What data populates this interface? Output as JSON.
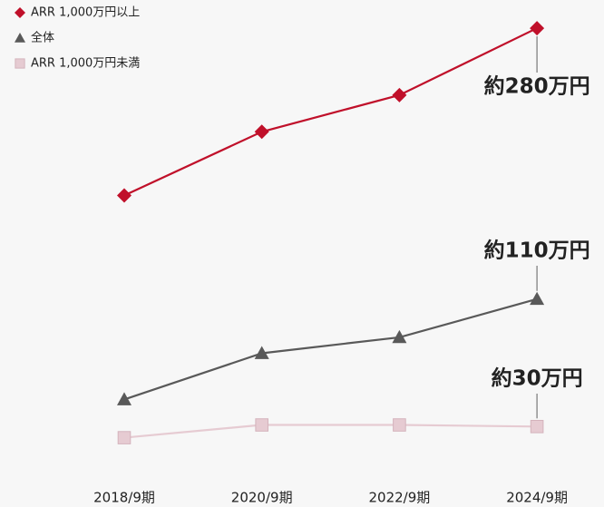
{
  "chart_data": {
    "type": "line",
    "categories": [
      "2018/9期",
      "2020/9期",
      "2022/9期",
      "2024/9期"
    ],
    "series": [
      {
        "name": "ARR 1,000万円以上",
        "color": "#c0102a",
        "marker": "diamond",
        "values": [
          175,
          215,
          238,
          280
        ],
        "value_labels": [
          null,
          null,
          null,
          "約280万円"
        ]
      },
      {
        "name": "全体",
        "color": "#595959",
        "marker": "triangle",
        "values": [
          47,
          76,
          86,
          110
        ],
        "value_labels": [
          null,
          null,
          null,
          "約110万円"
        ]
      },
      {
        "name": "ARR 1,000万円未満",
        "color": "#e6cbd2",
        "marker": "square",
        "values": [
          23,
          31,
          31,
          30
        ],
        "value_labels": [
          null,
          null,
          null,
          "約30万円"
        ]
      }
    ],
    "ylim": [
      0,
      290
    ],
    "legend": "top-left",
    "grid": false
  }
}
